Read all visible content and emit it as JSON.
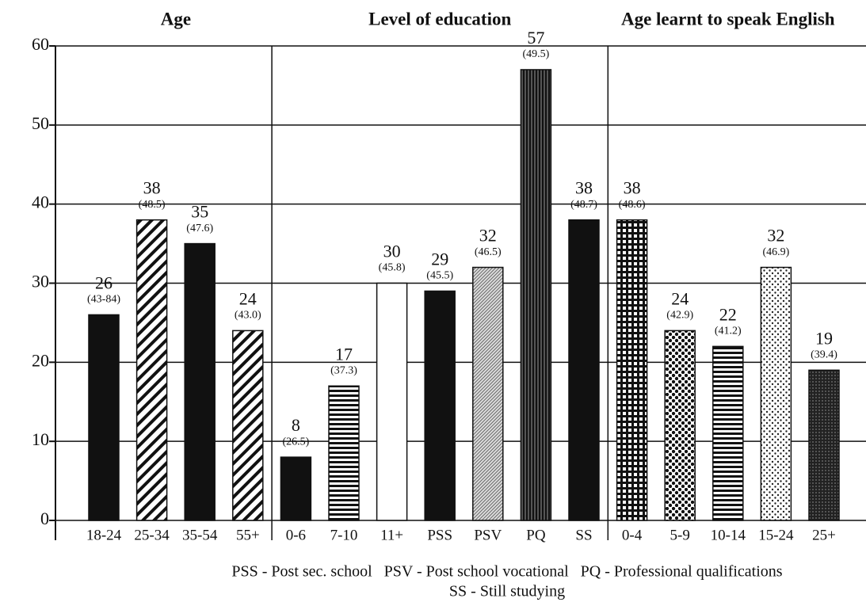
{
  "chart_data": {
    "type": "bar",
    "ylim": [
      0,
      60
    ],
    "yticks": [
      0,
      10,
      20,
      30,
      40,
      50,
      60
    ],
    "grid": true,
    "groups": [
      {
        "title": "Age",
        "categories": [
          "18-24",
          "25-34",
          "35-54",
          "55+"
        ],
        "values": [
          26,
          38,
          35,
          24
        ],
        "sublabels": [
          "(43-84)",
          "(48.5)",
          "(47.6)",
          "(43.0)"
        ],
        "patterns": [
          "solid",
          "diag",
          "solid",
          "diag"
        ]
      },
      {
        "title": "Level of education",
        "categories": [
          "0-6",
          "7-10",
          "11+",
          "PSS",
          "PSV",
          "PQ",
          "SS"
        ],
        "values": [
          8,
          17,
          30,
          29,
          32,
          57,
          38
        ],
        "sublabels": [
          "(26.5)",
          "(37.3)",
          "(45.8)",
          "(45.5)",
          "(46.5)",
          "(49.5)",
          "(48.7)"
        ],
        "patterns": [
          "solid",
          "hlines",
          "white",
          "solid",
          "fine",
          "vlines",
          "solid"
        ]
      },
      {
        "title": "Age learnt to speak English",
        "categories": [
          "0-4",
          "5-9",
          "10-14",
          "15-24",
          "25+"
        ],
        "values": [
          38,
          24,
          22,
          32,
          19
        ],
        "sublabels": [
          "(48.6)",
          "(42.9)",
          "(41.2)",
          "(46.9)",
          "(39.4)"
        ],
        "patterns": [
          "grid",
          "dots",
          "hlines",
          "lightdots",
          "dark"
        ]
      }
    ],
    "footnotes": [
      "PSS - Post sec. school   PSV - Post school vocational   PQ - Professional qualifications",
      "SS - Still studying"
    ]
  }
}
